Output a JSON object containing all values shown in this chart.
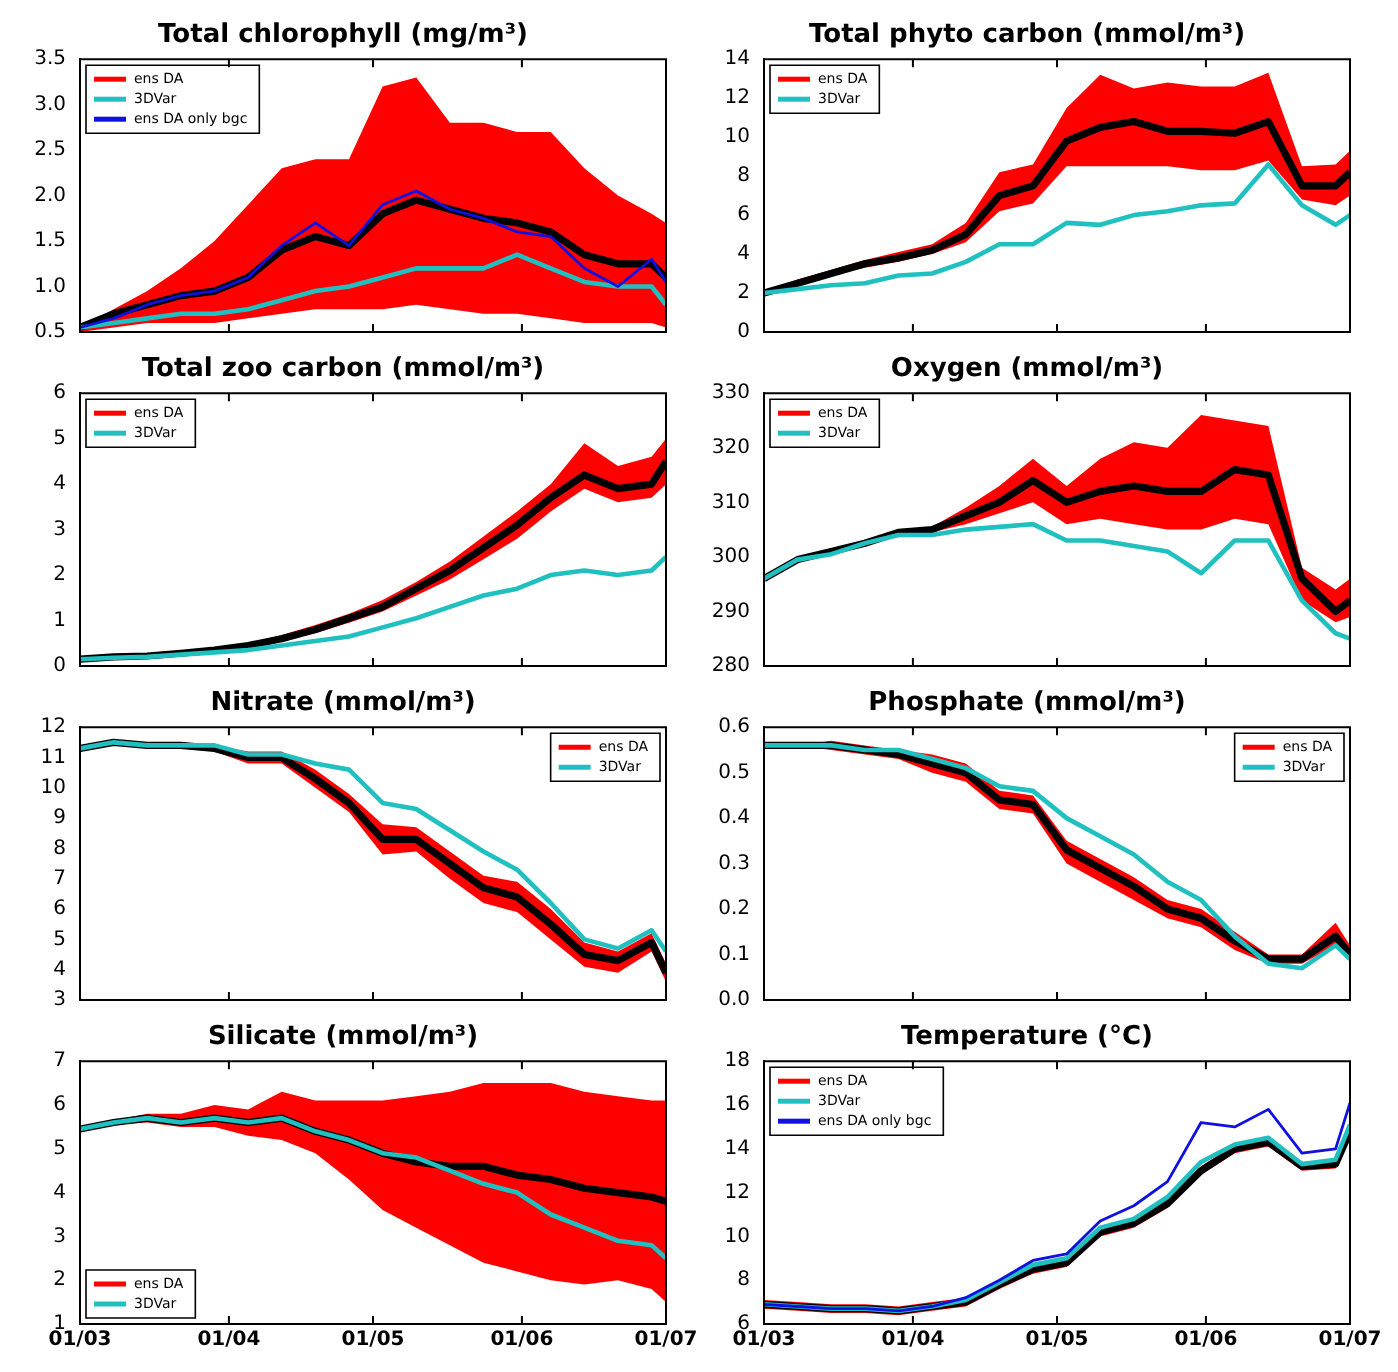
{
  "chart_data": [
    {
      "type": "line",
      "title": "Total chlorophyll (mg/m³)",
      "x": [
        "--03-01",
        "--03-08",
        "--03-15",
        "--03-22",
        "--03-29",
        "--04-05",
        "--04-12",
        "--04-19",
        "--04-26",
        "--05-03",
        "--05-10",
        "--05-17",
        "--05-24",
        "--05-31",
        "--06-07",
        "--06-14",
        "--06-21",
        "--06-28",
        "--07-01"
      ],
      "xlim": [
        "--03-01",
        "--07-01"
      ],
      "xticks": [
        {
          "value": "--03-01",
          "label": null
        },
        {
          "value": "--04-01",
          "label": null
        },
        {
          "value": "--05-01",
          "label": null
        },
        {
          "value": "--06-01",
          "label": null
        },
        {
          "value": "--07-01",
          "label": null
        }
      ],
      "ylim": [
        0.5,
        3.5
      ],
      "yticks": [
        {
          "value": 0.5,
          "label": "0.5"
        },
        {
          "value": 1,
          "label": "1.0"
        },
        {
          "value": 1.5,
          "label": "1.5"
        },
        {
          "value": 2,
          "label": "2.0"
        },
        {
          "value": 2.5,
          "label": "2.5"
        },
        {
          "value": 3,
          "label": "3.0"
        },
        {
          "value": 3.5,
          "label": "3.5"
        }
      ],
      "tick_labels": "y",
      "legend": "top left",
      "series": [
        {
          "name": "ens DA",
          "color": "#ff0000",
          "values": [
            null,
            null,
            null,
            null,
            null,
            null,
            null,
            null,
            null,
            null,
            null,
            null,
            null,
            null,
            null,
            null,
            null,
            null,
            null
          ],
          "lower": [
            0.5,
            0.55,
            0.6,
            0.6,
            0.6,
            0.65,
            0.7,
            0.75,
            0.75,
            0.75,
            0.8,
            0.75,
            0.7,
            0.7,
            0.65,
            0.6,
            0.6,
            0.6,
            0.55
          ],
          "upper": [
            0.55,
            0.75,
            0.95,
            1.2,
            1.5,
            1.9,
            2.3,
            2.4,
            2.4,
            3.2,
            3.3,
            2.8,
            2.8,
            2.7,
            2.7,
            2.3,
            2.0,
            1.8,
            1.7
          ]
        },
        {
          "name": "3DVar",
          "color": "#20c0c0",
          "values": [
            0.55,
            0.6,
            0.65,
            0.7,
            0.7,
            0.75,
            0.85,
            0.95,
            1.0,
            1.1,
            1.2,
            1.2,
            1.2,
            1.35,
            1.2,
            1.05,
            1.0,
            1.0,
            0.8
          ]
        },
        {
          "name": "ens DA only bgc",
          "color": "#1010e0",
          "values": [
            0.55,
            0.65,
            0.8,
            0.9,
            0.95,
            1.1,
            1.45,
            1.7,
            1.45,
            1.9,
            2.05,
            1.85,
            1.75,
            1.6,
            1.55,
            1.2,
            1.0,
            1.3,
            1.05
          ]
        },
        {
          "color": "#000000",
          "values": [
            0.55,
            0.7,
            0.8,
            0.9,
            0.95,
            1.1,
            1.4,
            1.55,
            1.45,
            1.8,
            1.95,
            1.85,
            1.75,
            1.7,
            1.6,
            1.35,
            1.25,
            1.25,
            1.1
          ]
        }
      ]
    },
    {
      "type": "line",
      "title": "Total phyto carbon (mmol/m³)",
      "x": [
        "--03-01",
        "--03-08",
        "--03-15",
        "--03-22",
        "--03-29",
        "--04-05",
        "--04-12",
        "--04-19",
        "--04-26",
        "--05-03",
        "--05-10",
        "--05-17",
        "--05-24",
        "--05-31",
        "--06-07",
        "--06-14",
        "--06-21",
        "--06-28",
        "--07-01"
      ],
      "xlim": [
        "--03-01",
        "--07-01"
      ],
      "xticks": [
        {
          "value": "--03-01",
          "label": null
        },
        {
          "value": "--04-01",
          "label": null
        },
        {
          "value": "--05-01",
          "label": null
        },
        {
          "value": "--06-01",
          "label": null
        },
        {
          "value": "--07-01",
          "label": null
        }
      ],
      "ylim": [
        0,
        14
      ],
      "yticks": [
        0,
        2,
        4,
        6,
        8,
        10,
        12,
        14
      ],
      "tick_labels": "y",
      "legend": "top left",
      "series": [
        {
          "name": "ens DA",
          "color": "#ff0000",
          "values": [
            null,
            null,
            null,
            null,
            null,
            null,
            null,
            null,
            null,
            null,
            null,
            null,
            null,
            null,
            null,
            null,
            null,
            null,
            null
          ],
          "lower": [
            2,
            2.4,
            2.9,
            3.3,
            3.6,
            4,
            4.6,
            6.2,
            6.6,
            8.5,
            8.5,
            8.5,
            8.5,
            8.3,
            8.3,
            8.8,
            6.8,
            6.5,
            7
          ],
          "upper": [
            2,
            2.7,
            3.2,
            3.7,
            4.1,
            4.5,
            5.6,
            8.2,
            8.6,
            11.5,
            13.2,
            12.5,
            12.8,
            12.6,
            12.6,
            13.3,
            8.5,
            8.6,
            9.3
          ]
        },
        {
          "name": "3DVar",
          "color": "#20c0c0",
          "values": [
            2,
            2.2,
            2.4,
            2.5,
            2.9,
            3,
            3.6,
            4.5,
            4.5,
            5.6,
            5.5,
            6,
            6.2,
            6.5,
            6.6,
            8.6,
            6.5,
            5.5,
            6
          ]
        },
        {
          "color": "#000000",
          "values": [
            2,
            2.5,
            3,
            3.5,
            3.8,
            4.2,
            5,
            7,
            7.5,
            9.8,
            10.5,
            10.8,
            10.3,
            10.3,
            10.2,
            10.8,
            7.5,
            7.5,
            8.2
          ]
        }
      ]
    },
    {
      "type": "line",
      "title": "Total zoo carbon (mmol/m³)",
      "x": [
        "--03-01",
        "--03-08",
        "--03-15",
        "--03-22",
        "--03-29",
        "--04-05",
        "--04-12",
        "--04-19",
        "--04-26",
        "--05-03",
        "--05-10",
        "--05-17",
        "--05-24",
        "--05-31",
        "--06-07",
        "--06-14",
        "--06-21",
        "--06-28",
        "--07-01"
      ],
      "xlim": [
        "--03-01",
        "--07-01"
      ],
      "xticks": [
        {
          "value": "--03-01",
          "label": null
        },
        {
          "value": "--04-01",
          "label": null
        },
        {
          "value": "--05-01",
          "label": null
        },
        {
          "value": "--06-01",
          "label": null
        },
        {
          "value": "--07-01",
          "label": null
        }
      ],
      "ylim": [
        0,
        6
      ],
      "yticks": [
        0,
        1,
        2,
        3,
        4,
        5,
        6
      ],
      "tick_labels": "y",
      "legend": "top left",
      "series": [
        {
          "name": "ens DA",
          "color": "#ff0000",
          "values": [
            null,
            null,
            null,
            null,
            null,
            null,
            null,
            null,
            null,
            null,
            null,
            null,
            null,
            null,
            null,
            null,
            null,
            null,
            null
          ],
          "lower": [
            0.15,
            0.18,
            0.2,
            0.25,
            0.32,
            0.4,
            0.55,
            0.72,
            0.95,
            1.2,
            1.55,
            1.9,
            2.35,
            2.8,
            3.4,
            3.9,
            3.6,
            3.7,
            4.0
          ],
          "upper": [
            0.15,
            0.22,
            0.25,
            0.3,
            0.38,
            0.5,
            0.68,
            0.9,
            1.15,
            1.45,
            1.85,
            2.3,
            2.85,
            3.4,
            4.0,
            4.9,
            4.4,
            4.6,
            5.0
          ]
        },
        {
          "name": "3DVar",
          "color": "#20c0c0",
          "values": [
            0.15,
            0.18,
            0.2,
            0.25,
            0.3,
            0.35,
            0.45,
            0.55,
            0.65,
            0.85,
            1.05,
            1.3,
            1.55,
            1.7,
            2.0,
            2.1,
            2.0,
            2.1,
            2.4
          ]
        },
        {
          "color": "#000000",
          "values": [
            0.15,
            0.2,
            0.22,
            0.28,
            0.35,
            0.45,
            0.6,
            0.8,
            1.05,
            1.3,
            1.7,
            2.1,
            2.6,
            3.1,
            3.7,
            4.2,
            3.9,
            4,
            4.5
          ]
        }
      ]
    },
    {
      "type": "line",
      "title": "Oxygen (mmol/m³)",
      "x": [
        "--03-01",
        "--03-08",
        "--03-15",
        "--03-22",
        "--03-29",
        "--04-05",
        "--04-12",
        "--04-19",
        "--04-26",
        "--05-03",
        "--05-10",
        "--05-17",
        "--05-24",
        "--05-31",
        "--06-07",
        "--06-14",
        "--06-21",
        "--06-28",
        "--07-01"
      ],
      "xlim": [
        "--03-01",
        "--07-01"
      ],
      "xticks": [
        {
          "value": "--03-01",
          "label": null
        },
        {
          "value": "--04-01",
          "label": null
        },
        {
          "value": "--05-01",
          "label": null
        },
        {
          "value": "--06-01",
          "label": null
        },
        {
          "value": "--07-01",
          "label": null
        }
      ],
      "ylim": [
        280,
        330
      ],
      "yticks": [
        280,
        290,
        300,
        310,
        320,
        330
      ],
      "tick_labels": "y",
      "legend": "top left",
      "series": [
        {
          "name": "ens DA",
          "color": "#ff0000",
          "values": [
            null,
            null,
            null,
            null,
            null,
            null,
            null,
            null,
            null,
            null,
            null,
            null,
            null,
            null,
            null,
            null,
            null,
            null,
            null
          ],
          "lower": [
            296,
            299.5,
            301,
            302.5,
            304,
            304.5,
            306,
            308,
            310,
            306,
            307,
            306,
            305,
            305,
            307,
            306,
            292,
            288,
            289
          ],
          "upper": [
            296,
            299.5,
            301,
            302.5,
            305,
            305.5,
            309,
            313,
            318,
            313,
            318,
            321,
            320,
            326,
            325,
            324,
            298,
            294,
            296
          ]
        },
        {
          "name": "3DVar",
          "color": "#20c0c0",
          "values": [
            296,
            299.5,
            300.5,
            302.5,
            304,
            304,
            305,
            305.5,
            306,
            303,
            303,
            302,
            301,
            297,
            303,
            303,
            292,
            286,
            285
          ]
        },
        {
          "color": "#000000",
          "values": [
            296,
            299.5,
            301,
            302.5,
            304.5,
            305,
            307.5,
            310,
            314,
            310,
            312,
            313,
            312,
            312,
            316,
            315,
            296,
            290,
            292
          ]
        }
      ]
    },
    {
      "type": "line",
      "title": "Nitrate (mmol/m³)",
      "x": [
        "--03-01",
        "--03-08",
        "--03-15",
        "--03-22",
        "--03-29",
        "--04-05",
        "--04-12",
        "--04-19",
        "--04-26",
        "--05-03",
        "--05-10",
        "--05-17",
        "--05-24",
        "--05-31",
        "--06-07",
        "--06-14",
        "--06-21",
        "--06-28",
        "--07-01"
      ],
      "xlim": [
        "--03-01",
        "--07-01"
      ],
      "xticks": [
        {
          "value": "--03-01",
          "label": null
        },
        {
          "value": "--04-01",
          "label": null
        },
        {
          "value": "--05-01",
          "label": null
        },
        {
          "value": "--06-01",
          "label": null
        },
        {
          "value": "--07-01",
          "label": null
        }
      ],
      "ylim": [
        3,
        12
      ],
      "yticks": [
        3,
        4,
        5,
        6,
        7,
        8,
        9,
        10,
        11,
        12
      ],
      "tick_labels": "y",
      "legend": "top right",
      "series": [
        {
          "name": "ens DA",
          "color": "#ff0000",
          "values": [
            null,
            null,
            null,
            null,
            null,
            null,
            null,
            null,
            null,
            null,
            null,
            null,
            null,
            null,
            null,
            null,
            null,
            null,
            null
          ],
          "lower": [
            11.3,
            11.5,
            11.4,
            11.3,
            11.2,
            10.8,
            10.8,
            10,
            9.2,
            7.8,
            7.9,
            7,
            6.2,
            5.9,
            5,
            4.1,
            3.9,
            4.6,
            3.6
          ],
          "upper": [
            11.3,
            11.5,
            11.4,
            11.5,
            11.4,
            11.2,
            11.2,
            10.6,
            9.8,
            8.8,
            8.7,
            7.9,
            7.1,
            6.9,
            6,
            4.9,
            4.6,
            5.2,
            4.2
          ]
        },
        {
          "name": "3DVar",
          "color": "#20c0c0",
          "values": [
            11.3,
            11.5,
            11.4,
            11.4,
            11.4,
            11.1,
            11.1,
            10.8,
            10.6,
            9.5,
            9.3,
            8.6,
            7.9,
            7.3,
            6.2,
            5.0,
            4.7,
            5.3,
            4.6
          ]
        },
        {
          "color": "#000000",
          "values": [
            11.3,
            11.5,
            11.4,
            11.4,
            11.3,
            11,
            11,
            10.3,
            9.5,
            8.3,
            8.3,
            7.5,
            6.7,
            6.4,
            5.5,
            4.5,
            4.3,
            4.9,
            3.9
          ]
        }
      ]
    },
    {
      "type": "line",
      "title": "Phosphate (mmol/m³)",
      "x": [
        "--03-01",
        "--03-08",
        "--03-15",
        "--03-22",
        "--03-29",
        "--04-05",
        "--04-12",
        "--04-19",
        "--04-26",
        "--05-03",
        "--05-10",
        "--05-17",
        "--05-24",
        "--05-31",
        "--06-07",
        "--06-14",
        "--06-21",
        "--06-28",
        "--07-01"
      ],
      "xlim": [
        "--03-01",
        "--07-01"
      ],
      "xticks": [
        {
          "value": "--03-01",
          "label": null
        },
        {
          "value": "--04-01",
          "label": null
        },
        {
          "value": "--05-01",
          "label": null
        },
        {
          "value": "--06-01",
          "label": null
        },
        {
          "value": "--07-01",
          "label": null
        }
      ],
      "ylim": [
        0,
        0.6
      ],
      "yticks": [
        {
          "value": 0,
          "label": "0.0"
        },
        {
          "value": 0.1,
          "label": "0.1"
        },
        {
          "value": 0.2,
          "label": "0.2"
        },
        {
          "value": 0.3,
          "label": "0.3"
        },
        {
          "value": 0.4,
          "label": "0.4"
        },
        {
          "value": 0.5,
          "label": "0.5"
        },
        {
          "value": 0.6,
          "label": "0.6"
        }
      ],
      "tick_labels": "y",
      "legend": "top right",
      "series": [
        {
          "name": "ens DA",
          "color": "#ff0000",
          "values": [
            null,
            null,
            null,
            null,
            null,
            null,
            null,
            null,
            null,
            null,
            null,
            null,
            null,
            null,
            null,
            null,
            null,
            null,
            null
          ],
          "lower": [
            0.56,
            0.56,
            0.55,
            0.54,
            0.53,
            0.5,
            0.48,
            0.42,
            0.41,
            0.3,
            0.26,
            0.22,
            0.18,
            0.16,
            0.11,
            0.08,
            0.08,
            0.12,
            0.09
          ],
          "upper": [
            0.56,
            0.56,
            0.57,
            0.56,
            0.55,
            0.54,
            0.52,
            0.46,
            0.45,
            0.35,
            0.31,
            0.27,
            0.22,
            0.2,
            0.15,
            0.1,
            0.1,
            0.17,
            0.12
          ]
        },
        {
          "name": "3DVar",
          "color": "#20c0c0",
          "values": [
            0.56,
            0.56,
            0.56,
            0.55,
            0.55,
            0.53,
            0.51,
            0.47,
            0.46,
            0.4,
            0.36,
            0.32,
            0.26,
            0.22,
            0.14,
            0.08,
            0.07,
            0.12,
            0.09
          ]
        },
        {
          "color": "#000000",
          "values": [
            0.56,
            0.56,
            0.56,
            0.55,
            0.54,
            0.52,
            0.5,
            0.44,
            0.43,
            0.33,
            0.29,
            0.25,
            0.2,
            0.18,
            0.13,
            0.09,
            0.09,
            0.14,
            0.1
          ]
        }
      ]
    },
    {
      "type": "line",
      "title": "Silicate (mmol/m³)",
      "x": [
        "--03-01",
        "--03-08",
        "--03-15",
        "--03-22",
        "--03-29",
        "--04-05",
        "--04-12",
        "--04-19",
        "--04-26",
        "--05-03",
        "--05-10",
        "--05-17",
        "--05-24",
        "--05-31",
        "--06-07",
        "--06-14",
        "--06-21",
        "--06-28",
        "--07-01"
      ],
      "xlim": [
        "--03-01",
        "--07-01"
      ],
      "xticks": [
        {
          "value": "--03-01",
          "label": "01/03"
        },
        {
          "value": "--04-01",
          "label": "01/04"
        },
        {
          "value": "--05-01",
          "label": "01/05"
        },
        {
          "value": "--06-01",
          "label": "01/06"
        },
        {
          "value": "--07-01",
          "label": "01/07"
        }
      ],
      "ylim": [
        1,
        7
      ],
      "yticks": [
        1,
        2,
        3,
        4,
        5,
        6,
        7
      ],
      "legend": "bottom left",
      "series": [
        {
          "name": "ens DA",
          "color": "#ff0000",
          "values": [
            null,
            null,
            null,
            null,
            null,
            null,
            null,
            null,
            null,
            null,
            null,
            null,
            null,
            null,
            null,
            null,
            null,
            null,
            null
          ],
          "lower": [
            5.45,
            5.55,
            5.6,
            5.5,
            5.5,
            5.3,
            5.2,
            4.9,
            4.3,
            3.6,
            3.2,
            2.8,
            2.4,
            2.2,
            2.0,
            1.9,
            2.0,
            1.8,
            1.5
          ],
          "upper": [
            5.45,
            5.65,
            5.8,
            5.8,
            6.0,
            5.9,
            6.3,
            6.1,
            6.1,
            6.1,
            6.2,
            6.3,
            6.5,
            6.5,
            6.5,
            6.3,
            6.2,
            6.1,
            6.1
          ]
        },
        {
          "name": "3DVar",
          "color": "#20c0c0",
          "values": [
            5.45,
            5.6,
            5.7,
            5.6,
            5.7,
            5.6,
            5.7,
            5.4,
            5.2,
            4.9,
            4.8,
            4.5,
            4.2,
            4.0,
            3.5,
            3.2,
            2.9,
            2.8,
            2.5
          ]
        },
        {
          "color": "#000000",
          "values": [
            5.45,
            5.6,
            5.7,
            5.6,
            5.7,
            5.6,
            5.7,
            5.4,
            5.2,
            4.9,
            4.7,
            4.6,
            4.6,
            4.4,
            4.3,
            4.1,
            4.0,
            3.9,
            3.8
          ]
        }
      ]
    },
    {
      "type": "line",
      "title": "Temperature (°C)",
      "x": [
        "--03-01",
        "--03-08",
        "--03-15",
        "--03-22",
        "--03-29",
        "--04-05",
        "--04-12",
        "--04-19",
        "--04-26",
        "--05-03",
        "--05-10",
        "--05-17",
        "--05-24",
        "--05-31",
        "--06-07",
        "--06-14",
        "--06-21",
        "--06-28",
        "--07-01"
      ],
      "xlim": [
        "--03-01",
        "--07-01"
      ],
      "xticks": [
        {
          "value": "--03-01",
          "label": "01/03"
        },
        {
          "value": "--04-01",
          "label": "01/04"
        },
        {
          "value": "--05-01",
          "label": "01/05"
        },
        {
          "value": "--06-01",
          "label": "01/06"
        },
        {
          "value": "--07-01",
          "label": "01/07"
        }
      ],
      "ylim": [
        6,
        18
      ],
      "yticks": [
        6,
        8,
        10,
        12,
        14,
        16,
        18
      ],
      "legend": "top left",
      "series": [
        {
          "name": "ens DA",
          "color": "#ff0000",
          "values": [
            null,
            null,
            null,
            null,
            null,
            null,
            null,
            null,
            null,
            null,
            null,
            null,
            null,
            null,
            null,
            null,
            null,
            null,
            null
          ],
          "lower": [
            6.7,
            6.6,
            6.5,
            6.5,
            6.4,
            6.6,
            6.8,
            7.6,
            8.3,
            8.6,
            10.0,
            10.4,
            11.3,
            12.8,
            13.8,
            14.1,
            13.0,
            13.1,
            14.6
          ],
          "upper": [
            7.1,
            7.0,
            6.9,
            6.9,
            6.8,
            7.0,
            7.2,
            8.0,
            8.7,
            9.0,
            10.4,
            10.8,
            11.7,
            13.2,
            14.2,
            14.5,
            13.4,
            13.5,
            15.0
          ]
        },
        {
          "name": "3DVar",
          "color": "#20c0c0",
          "values": [
            6.9,
            6.8,
            6.7,
            6.7,
            6.6,
            6.8,
            7.1,
            7.9,
            8.7,
            9.0,
            10.4,
            10.8,
            11.8,
            13.4,
            14.2,
            14.5,
            13.3,
            13.5,
            15.1
          ]
        },
        {
          "name": "ens DA only bgc",
          "color": "#1010e0",
          "values": [
            6.9,
            6.8,
            6.7,
            6.7,
            6.6,
            6.8,
            7.2,
            8.0,
            8.9,
            9.2,
            10.7,
            11.4,
            12.5,
            15.2,
            15.0,
            15.8,
            13.8,
            14.0,
            16.1
          ]
        },
        {
          "color": "#000000",
          "values": [
            6.9,
            6.8,
            6.7,
            6.7,
            6.6,
            6.8,
            7.0,
            7.8,
            8.5,
            8.8,
            10.2,
            10.6,
            11.5,
            13.0,
            14.0,
            14.3,
            13.2,
            13.3,
            14.8
          ]
        }
      ]
    }
  ]
}
